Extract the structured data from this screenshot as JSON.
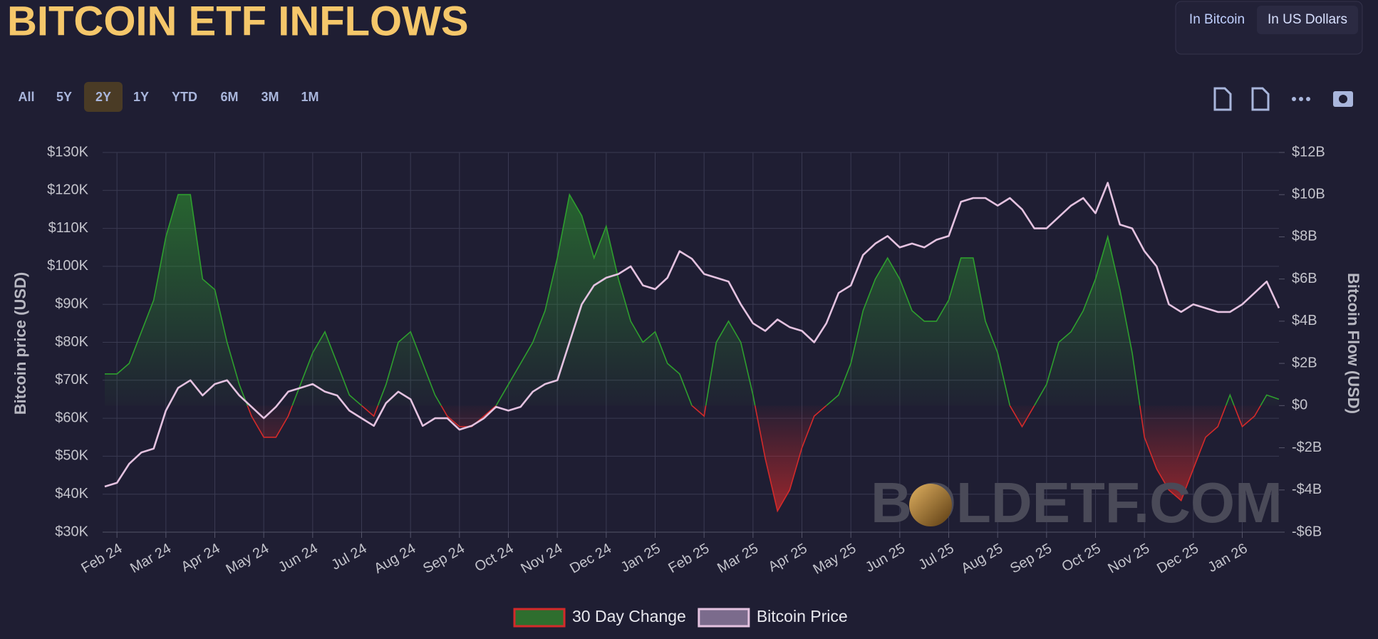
{
  "controls": {
    "units": [
      "In Bitcoin",
      "In US Dollars"
    ],
    "selected_unit": 1,
    "ranges": [
      "All",
      "5Y",
      "2Y",
      "1Y",
      "YTD",
      "6M",
      "3M",
      "1M"
    ],
    "selected_range": 2
  },
  "chart_data": {
    "type": "line",
    "title": "BITCOIN ETF INFLOWS",
    "y_label": "Bitcoin price (USD)",
    "y2_label": "Bitcoin Flow (USD)",
    "watermark": "BOLDETF.COM",
    "categories": [
      null,
      "Feb 24",
      null,
      null,
      null,
      "Mar 24",
      null,
      null,
      null,
      "Apr 24",
      null,
      null,
      null,
      "May 24",
      null,
      null,
      null,
      "Jun 24",
      null,
      null,
      null,
      "Jul 24",
      null,
      null,
      null,
      "Aug 24",
      null,
      null,
      null,
      "Sep 24",
      null,
      null,
      null,
      "Oct 24",
      null,
      null,
      null,
      "Nov 24",
      null,
      null,
      null,
      "Dec 24",
      null,
      null,
      null,
      "Jan 25",
      null,
      null,
      null,
      "Feb 25",
      null,
      null,
      null,
      "Mar 25",
      null,
      null,
      null,
      "Apr 25",
      null,
      null,
      null,
      "May 25",
      null,
      null,
      null,
      "Jun 25",
      null,
      null,
      null,
      "Jul 25",
      null,
      null,
      null,
      "Aug 25",
      null,
      null,
      null,
      "Sep 25",
      null,
      null,
      null,
      "Oct 25",
      null,
      null,
      null,
      "Nov 25",
      null,
      null,
      null,
      "Dec 25",
      null,
      null,
      null,
      "Jan 26",
      null,
      null,
      null
    ],
    "series": [
      {
        "name": "30 Day Change",
        "color": "#2e9e2e",
        "negative_color": "#d42a2a",
        "axis": "y2",
        "values": [
          1.5,
          1.5,
          2,
          3.5,
          5,
          8,
          10,
          10,
          6,
          5.5,
          3,
          1,
          -0.5,
          -1.5,
          -1.5,
          -0.5,
          1,
          2.5,
          3.5,
          2,
          0.5,
          0,
          -0.5,
          1,
          3,
          3.5,
          2,
          0.5,
          -0.5,
          -1,
          -1,
          -0.5,
          0,
          1,
          2,
          3,
          4.5,
          7,
          10,
          9,
          7,
          8.5,
          6,
          4,
          3,
          3.5,
          2,
          1.5,
          0,
          -0.5,
          3,
          4,
          3,
          0.5,
          -2.5,
          -5,
          -4,
          -2,
          -0.5,
          0,
          0.5,
          2,
          4.5,
          6,
          7,
          6,
          4.5,
          4,
          4,
          5,
          7,
          7,
          4,
          2.5,
          0,
          -1,
          0,
          1,
          3,
          3.5,
          4.5,
          6,
          8,
          5.5,
          2.5,
          -1.5,
          -3,
          -4,
          -4.5,
          -3,
          -1.5,
          -1,
          0.5,
          -1,
          -0.5,
          0.5,
          0.3
        ]
      },
      {
        "name": "Bitcoin Price",
        "color": "#e4c2e0",
        "values": [
          42,
          43,
          48,
          51,
          52,
          62,
          68,
          70,
          66,
          69,
          70,
          66,
          63,
          60,
          63,
          67,
          68,
          69,
          67,
          66,
          62,
          60,
          58,
          64,
          67,
          65,
          58,
          60,
          60,
          57,
          58,
          60,
          63,
          62,
          63,
          67,
          69,
          70,
          80,
          90,
          95,
          97,
          98,
          100,
          95,
          94,
          97,
          104,
          102,
          98,
          97,
          96,
          90,
          85,
          83,
          86,
          84,
          83,
          80,
          85,
          93,
          95,
          103,
          106,
          108,
          105,
          106,
          105,
          107,
          108,
          117,
          118,
          118,
          116,
          118,
          115,
          110,
          110,
          113,
          116,
          118,
          114,
          122,
          111,
          110,
          104,
          100,
          90,
          88,
          90,
          89,
          88,
          88,
          90,
          93,
          96,
          89
        ]
      }
    ],
    "ylim": [
      30,
      130
    ],
    "yticks": [
      {
        "value": 30,
        "label": "$30K"
      },
      {
        "value": 40,
        "label": "$40K"
      },
      {
        "value": 50,
        "label": "$50K"
      },
      {
        "value": 60,
        "label": "$60K"
      },
      {
        "value": 70,
        "label": "$70K"
      },
      {
        "value": 80,
        "label": "$80K"
      },
      {
        "value": 90,
        "label": "$90K"
      },
      {
        "value": 100,
        "label": "$100K"
      },
      {
        "value": 110,
        "label": "$110K"
      },
      {
        "value": 120,
        "label": "$120K"
      },
      {
        "value": 130,
        "label": "$130K"
      }
    ],
    "y2lim": [
      -6,
      12
    ],
    "y2ticks": [
      {
        "value": -6,
        "label": "-$6B"
      },
      {
        "value": -4,
        "label": "-$4B"
      },
      {
        "value": -2,
        "label": "-$2B"
      },
      {
        "value": 0,
        "label": "$0"
      },
      {
        "value": 2,
        "label": "$2B"
      },
      {
        "value": 4,
        "label": "$4B"
      },
      {
        "value": 6,
        "label": "$6B"
      },
      {
        "value": 8,
        "label": "$8B"
      },
      {
        "value": 10,
        "label": "$10B"
      },
      {
        "value": 12,
        "label": "$12B"
      }
    ],
    "grid": true,
    "legend": "bottom"
  }
}
